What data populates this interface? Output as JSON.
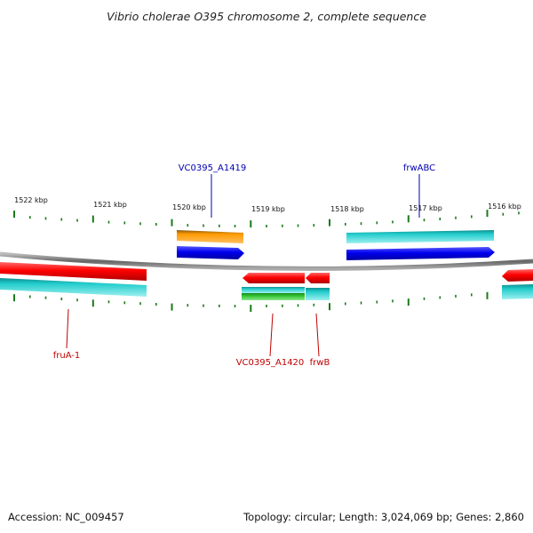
{
  "title": "Vibrio cholerae O395 chromosome 2, complete sequence",
  "footer": {
    "accession": "Accession: NC_009457",
    "stats": "Topology: circular; Length: 3,024,069 bp; Genes: 2,860"
  },
  "scale": {
    "kbp_labels": [
      "1522 kbp",
      "1521 kbp",
      "1520 kbp",
      "1519 kbp",
      "1518 kbp",
      "1517 kbp",
      "1516 kbp"
    ]
  },
  "gene_labels": {
    "vc0395_a1419": "VC0395_A1419",
    "frwabc": "frwABC",
    "frua1": "fruA-1",
    "vc0395_a1420": "VC0395_A1420",
    "frwb": "frwB"
  },
  "colors": {
    "forward_label": "#0000b0",
    "reverse_label": "#c00000",
    "gene_red": "#ff0000",
    "gene_blue": "#0000ee",
    "gene_cyan": "#22cccc",
    "gene_orange": "#ff9a00",
    "gene_green": "#22bb22",
    "tick_green": "#1a7a1a",
    "backbone": "#888888"
  }
}
